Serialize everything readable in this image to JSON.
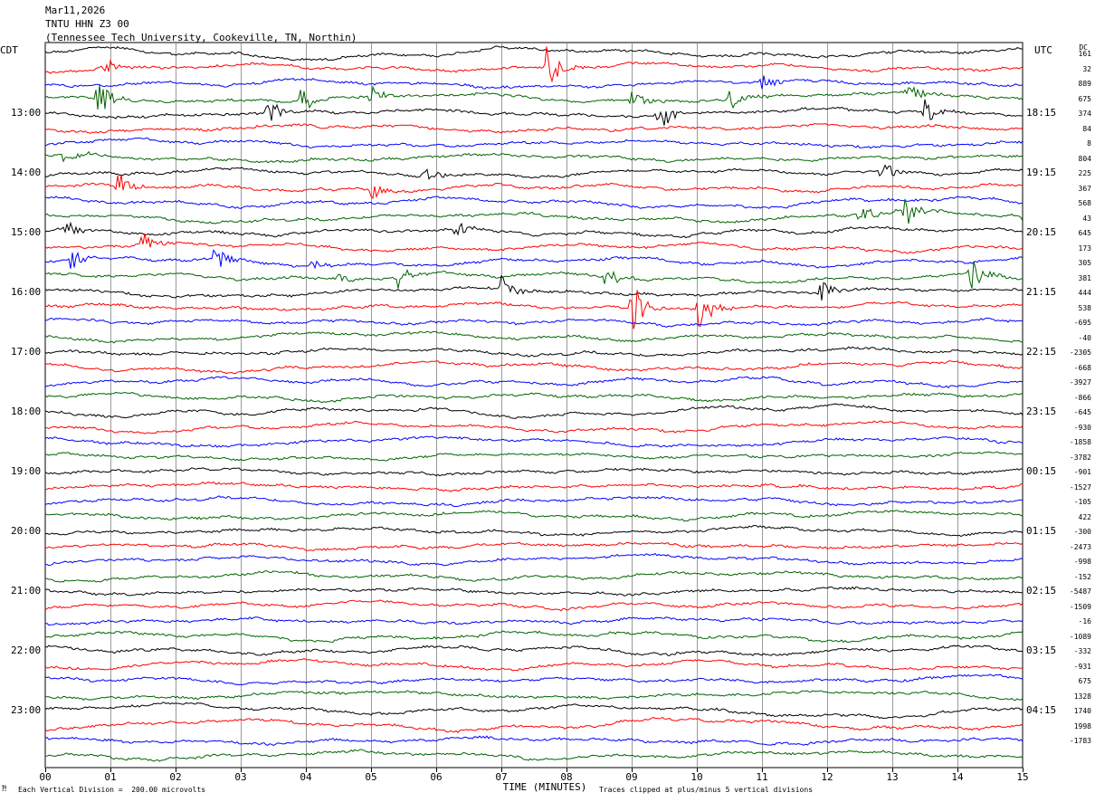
{
  "header": {
    "date": "Mar11,2026",
    "station": "TNTU HHN Z3 00",
    "location": "(Tennessee Tech University, Cookeville, TN, Northin)"
  },
  "left_timezone": "CDT",
  "right_timezone": "UTC",
  "dc_header": "DC",
  "footer": {
    "scale_note": "Each Vertical Division =  200.00 microvolts",
    "clip_note": "Traces clipped at plus/minus 5 vertical divisions"
  },
  "colors": {
    "cycle": [
      "#000000",
      "#ff0000",
      "#0000ff",
      "#006400"
    ],
    "grid": "#808080",
    "background": "#ffffff"
  },
  "chart_data": {
    "type": "line",
    "subtype": "helicorder",
    "xlabel": "TIME (MINUTES)",
    "x_ticks": [
      "00",
      "01",
      "02",
      "03",
      "04",
      "05",
      "06",
      "07",
      "08",
      "09",
      "10",
      "11",
      "12",
      "13",
      "14",
      "15"
    ],
    "xlim": [
      0,
      15
    ],
    "traces_per_hour": 4,
    "n_traces": 48,
    "left_hour_labels": [
      "13:00",
      "14:00",
      "15:00",
      "16:00",
      "17:00",
      "18:00",
      "19:00",
      "20:00",
      "21:00",
      "22:00",
      "23:00"
    ],
    "right_time_labels": [
      "18:15",
      "19:15",
      "20:15",
      "21:15",
      "22:15",
      "23:15",
      "00:15",
      "01:15",
      "02:15",
      "03:15",
      "04:15"
    ],
    "dc_offsets": [
      "161",
      "32",
      "889",
      "675",
      "374",
      "84",
      "8",
      "804",
      "225",
      "367",
      "568",
      "43",
      "645",
      "173",
      "305",
      "381",
      "444",
      "538",
      "-695",
      "-40",
      "-2305",
      "-668",
      "-3927",
      "-866",
      "-645",
      "-930",
      "-1858",
      "-3782",
      "-901",
      "-1527",
      "-105",
      "422",
      "-300",
      "-2473",
      "-998",
      "-152",
      "-5487",
      "-1509",
      "-16",
      "-1089",
      "-332",
      "-931",
      "675",
      "1328",
      "1740",
      "1998",
      "-1783"
    ],
    "events": [
      {
        "trace": 1,
        "minute": 0.9,
        "amplitude": 1.3
      },
      {
        "trace": 3,
        "minute": 0.8,
        "amplitude": 2.5
      },
      {
        "trace": 3,
        "minute": 3.9,
        "amplitude": 1.8
      },
      {
        "trace": 3,
        "minute": 5.0,
        "amplitude": 1.2
      },
      {
        "trace": 3,
        "minute": 9.0,
        "amplitude": 1.2
      },
      {
        "trace": 3,
        "minute": 10.5,
        "amplitude": 1.6
      },
      {
        "trace": 3,
        "minute": 13.2,
        "amplitude": 1.6
      },
      {
        "trace": 1,
        "minute": 7.7,
        "amplitude": 2.8
      },
      {
        "trace": 2,
        "minute": 11.0,
        "amplitude": 1.0
      },
      {
        "trace": 4,
        "minute": 3.4,
        "amplitude": 1.6
      },
      {
        "trace": 4,
        "minute": 9.4,
        "amplitude": 1.8
      },
      {
        "trace": 4,
        "minute": 13.5,
        "amplitude": 1.6
      },
      {
        "trace": 7,
        "minute": 0.3,
        "amplitude": 1.2
      },
      {
        "trace": 8,
        "minute": 5.8,
        "amplitude": 0.9
      },
      {
        "trace": 8,
        "minute": 12.8,
        "amplitude": 1.6
      },
      {
        "trace": 9,
        "minute": 1.1,
        "amplitude": 2.0
      },
      {
        "trace": 9,
        "minute": 5.0,
        "amplitude": 1.3
      },
      {
        "trace": 11,
        "minute": 12.5,
        "amplitude": 1.6
      },
      {
        "trace": 11,
        "minute": 13.2,
        "amplitude": 1.9
      },
      {
        "trace": 11,
        "minute": 15.0,
        "amplitude": 1.2
      },
      {
        "trace": 12,
        "minute": 0.3,
        "amplitude": 1.3
      },
      {
        "trace": 12,
        "minute": 6.3,
        "amplitude": 1.0
      },
      {
        "trace": 13,
        "minute": 1.5,
        "amplitude": 1.6
      },
      {
        "trace": 14,
        "minute": 0.4,
        "amplitude": 1.2
      },
      {
        "trace": 14,
        "minute": 2.6,
        "amplitude": 1.7
      },
      {
        "trace": 14,
        "minute": 4.1,
        "amplitude": 0.8
      },
      {
        "trace": 15,
        "minute": 4.5,
        "amplitude": 0.8
      },
      {
        "trace": 15,
        "minute": 5.4,
        "amplitude": 1.5
      },
      {
        "trace": 15,
        "minute": 8.6,
        "amplitude": 1.6
      },
      {
        "trace": 15,
        "minute": 14.2,
        "amplitude": 2.2
      },
      {
        "trace": 16,
        "minute": 7.0,
        "amplitude": 2.0
      },
      {
        "trace": 16,
        "minute": 11.9,
        "amplitude": 1.4
      },
      {
        "trace": 17,
        "minute": 9.0,
        "amplitude": 3.0
      },
      {
        "trace": 17,
        "minute": 10.0,
        "amplitude": 2.8
      }
    ]
  }
}
